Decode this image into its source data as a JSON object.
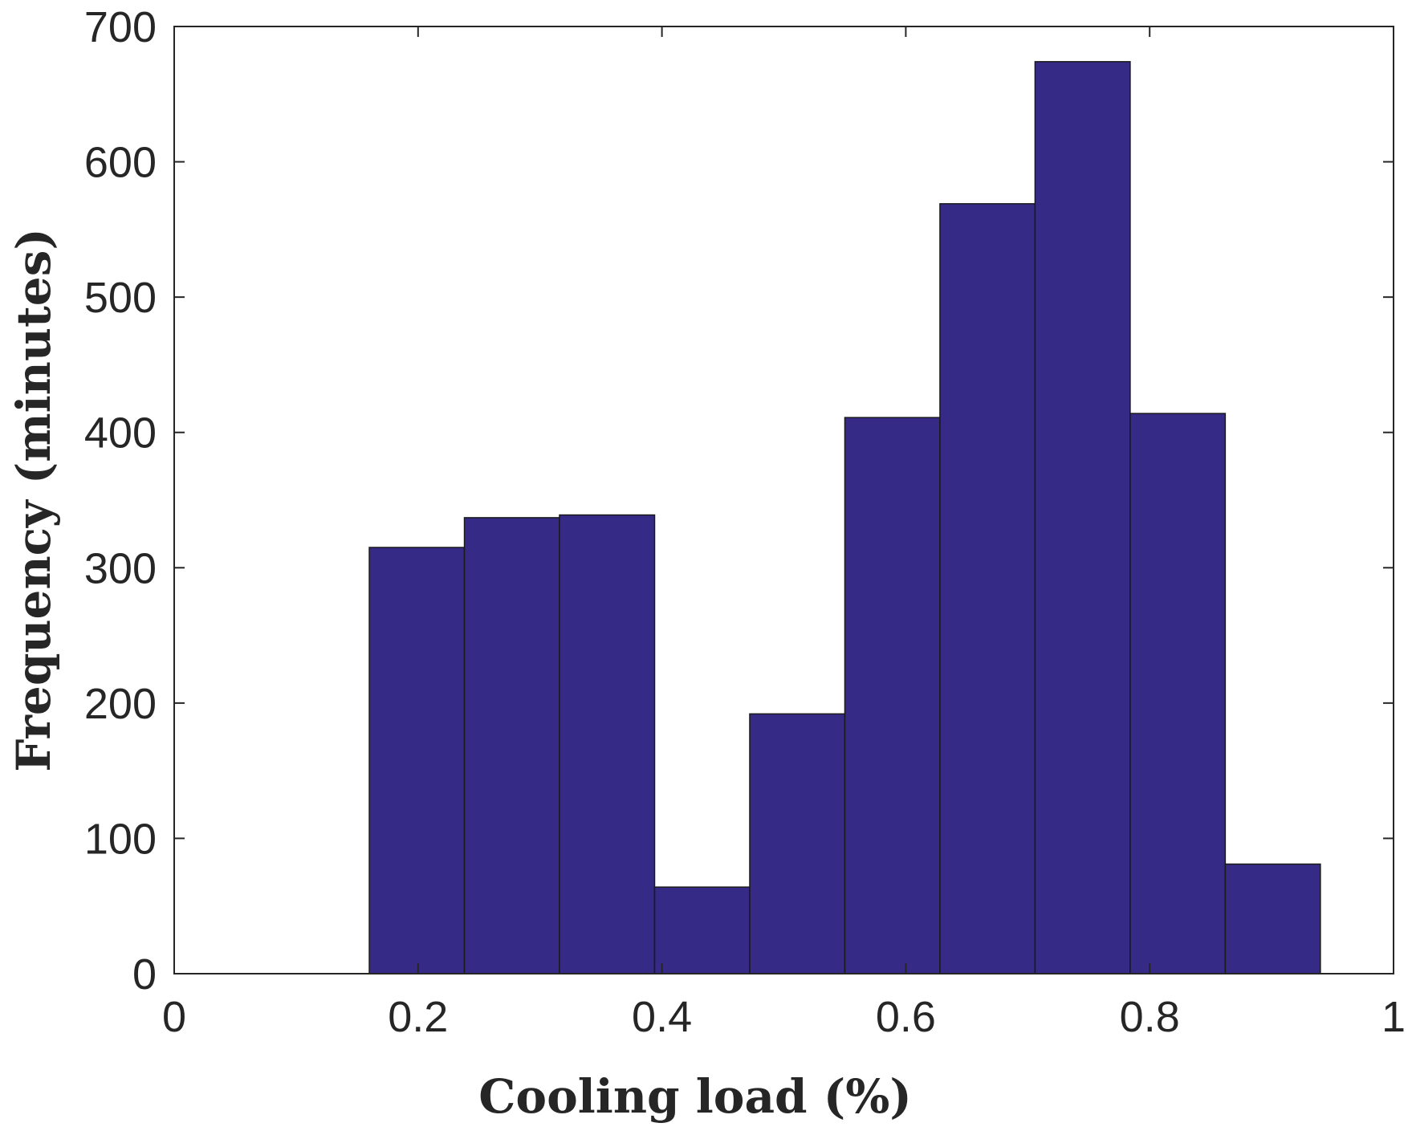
{
  "chart_data": {
    "type": "bar",
    "subtype": "histogram",
    "title": "",
    "xlabel": "Cooling load (%)",
    "ylabel": "Frequency (minutes)",
    "xlim": [
      0,
      1
    ],
    "ylim": [
      0,
      700
    ],
    "xticks": [
      0,
      0.2,
      0.4,
      0.6,
      0.8,
      1
    ],
    "xtick_labels": [
      "0",
      "0.2",
      "0.4",
      "0.6",
      "0.8",
      "1"
    ],
    "yticks": [
      0,
      100,
      200,
      300,
      400,
      500,
      600,
      700
    ],
    "ytick_labels": [
      "0",
      "100",
      "200",
      "300",
      "400",
      "500",
      "600",
      "700"
    ],
    "bin_edges": [
      0.16,
      0.238,
      0.316,
      0.394,
      0.472,
      0.55,
      0.628,
      0.706,
      0.784,
      0.862,
      0.94
    ],
    "values": [
      315,
      337,
      339,
      64,
      192,
      411,
      569,
      674,
      414,
      81
    ],
    "bar_color": "#352a85",
    "edge_color": "#1a1a1a",
    "grid": false
  }
}
